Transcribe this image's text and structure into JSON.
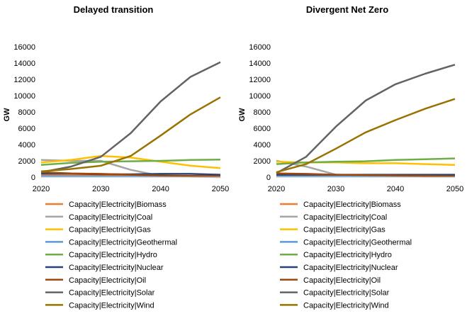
{
  "chart_data": [
    {
      "type": "line",
      "title": "Delayed transition",
      "ylabel": "GW",
      "xlabel": "",
      "x": [
        2020,
        2025,
        2030,
        2035,
        2040,
        2045,
        2050
      ],
      "xticks": [
        "2020",
        "2030",
        "2040",
        "2050"
      ],
      "xlim": [
        2020,
        2050
      ],
      "ylim": [
        0,
        16000
      ],
      "yticks": [
        "0",
        "2000",
        "4000",
        "6000",
        "8000",
        "10000",
        "12000",
        "14000",
        "16000"
      ],
      "grid": false,
      "legend": "bottom",
      "series": [
        {
          "name": "Capacity|Electricity|Biomass",
          "color": "#ed7d31",
          "values": [
            150,
            150,
            150,
            150,
            150,
            150,
            150
          ]
        },
        {
          "name": "Capacity|Electricity|Coal",
          "color": "#a5a5a5",
          "values": [
            2100,
            2000,
            2000,
            900,
            150,
            50,
            0
          ]
        },
        {
          "name": "Capacity|Electricity|Gas",
          "color": "#ffc000",
          "values": [
            1800,
            2100,
            2600,
            2400,
            1900,
            1400,
            1100
          ]
        },
        {
          "name": "Capacity|Electricity|Geothermal",
          "color": "#5b9bd5",
          "values": [
            50,
            50,
            50,
            50,
            50,
            50,
            50
          ]
        },
        {
          "name": "Capacity|Electricity|Hydro",
          "color": "#70ad47",
          "values": [
            1500,
            1750,
            1900,
            1950,
            2000,
            2100,
            2150
          ]
        },
        {
          "name": "Capacity|Electricity|Nuclear",
          "color": "#264478",
          "values": [
            400,
            400,
            350,
            350,
            400,
            400,
            300
          ]
        },
        {
          "name": "Capacity|Electricity|Oil",
          "color": "#9e480e",
          "values": [
            600,
            450,
            400,
            300,
            200,
            150,
            100
          ]
        },
        {
          "name": "Capacity|Electricity|Solar",
          "color": "#636363",
          "values": [
            600,
            1300,
            2500,
            5400,
            9300,
            12300,
            14100
          ]
        },
        {
          "name": "Capacity|Electricity|Wind",
          "color": "#997300",
          "values": [
            700,
            1000,
            1400,
            2600,
            5100,
            7700,
            9800
          ]
        }
      ]
    },
    {
      "type": "line",
      "title": "Divergent Net Zero",
      "ylabel": "GW",
      "xlabel": "",
      "x": [
        2020,
        2025,
        2030,
        2035,
        2040,
        2045,
        2050
      ],
      "xticks": [
        "2020",
        "2030",
        "2040",
        "2050"
      ],
      "xlim": [
        2020,
        2050
      ],
      "ylim": [
        0,
        16000
      ],
      "yticks": [
        "0",
        "2000",
        "4000",
        "6000",
        "8000",
        "10000",
        "12000",
        "14000",
        "16000"
      ],
      "grid": false,
      "legend": "bottom",
      "series": [
        {
          "name": "Capacity|Electricity|Biomass",
          "color": "#ed7d31",
          "values": [
            150,
            150,
            150,
            150,
            150,
            150,
            150
          ]
        },
        {
          "name": "Capacity|Electricity|Coal",
          "color": "#a5a5a5",
          "values": [
            2000,
            1300,
            300,
            150,
            100,
            50,
            50
          ]
        },
        {
          "name": "Capacity|Electricity|Gas",
          "color": "#ffc000",
          "values": [
            1900,
            1800,
            1800,
            1700,
            1700,
            1600,
            1500
          ]
        },
        {
          "name": "Capacity|Electricity|Geothermal",
          "color": "#5b9bd5",
          "values": [
            50,
            50,
            50,
            50,
            50,
            50,
            50
          ]
        },
        {
          "name": "Capacity|Electricity|Hydro",
          "color": "#70ad47",
          "values": [
            1600,
            1800,
            1900,
            1950,
            2100,
            2200,
            2300
          ]
        },
        {
          "name": "Capacity|Electricity|Nuclear",
          "color": "#264478",
          "values": [
            300,
            300,
            300,
            300,
            300,
            300,
            300
          ]
        },
        {
          "name": "Capacity|Electricity|Oil",
          "color": "#9e480e",
          "values": [
            450,
            400,
            300,
            250,
            200,
            150,
            100
          ]
        },
        {
          "name": "Capacity|Electricity|Solar",
          "color": "#636363",
          "values": [
            500,
            2500,
            6200,
            9400,
            11400,
            12700,
            13800
          ]
        },
        {
          "name": "Capacity|Electricity|Wind",
          "color": "#997300",
          "values": [
            600,
            1600,
            3500,
            5500,
            7000,
            8400,
            9600
          ]
        }
      ]
    }
  ]
}
